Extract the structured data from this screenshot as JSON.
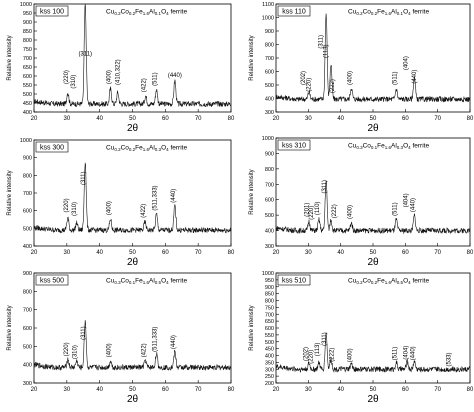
{
  "chart_data": [
    {
      "type": "line",
      "legend_label": "kss 100",
      "caption_parts": [
        [
          "Cu",
          "n"
        ],
        [
          "0.2",
          "s"
        ],
        [
          "Co",
          "n"
        ],
        [
          "0.2",
          "s"
        ],
        [
          "Fe",
          "n"
        ],
        [
          "1.6",
          "s"
        ],
        [
          "Al",
          "n"
        ],
        [
          "0.1",
          "s"
        ],
        [
          "O",
          "n"
        ],
        [
          "4",
          "s"
        ],
        [
          " ferrite",
          "n"
        ]
      ],
      "xlabel": "2θ",
      "ylabel": "Relative intensity",
      "xlim": [
        20,
        80
      ],
      "ylim": [
        400,
        1000
      ],
      "xticks": [
        20,
        30,
        40,
        50,
        60,
        70,
        80
      ],
      "yticks": [
        400,
        450,
        500,
        550,
        600,
        650,
        700,
        750,
        800,
        850,
        900,
        950,
        1000
      ],
      "background": 445,
      "peaks": [
        [
          30.3,
          510
        ],
        [
          35.6,
          1000
        ],
        [
          43.3,
          530
        ],
        [
          45.5,
          510
        ],
        [
          54.0,
          490
        ],
        [
          57.3,
          525
        ],
        [
          62.9,
          575
        ]
      ],
      "peak_labels": [
        {
          "text": "(220)",
          "x": 30.3,
          "y": 555,
          "rotate": true
        },
        {
          "text": "(310)",
          "x": 32.5,
          "y": 530,
          "rotate": true
        },
        {
          "text": "(311)",
          "x": 35.6,
          "y": 715,
          "rotate": false
        },
        {
          "text": "(400)",
          "x": 43.3,
          "y": 555,
          "rotate": true
        },
        {
          "text": "(410,322)",
          "x": 46.0,
          "y": 550,
          "rotate": true
        },
        {
          "text": "(422)",
          "x": 54.0,
          "y": 510,
          "rotate": true
        },
        {
          "text": "(511)",
          "x": 57.3,
          "y": 545,
          "rotate": true
        },
        {
          "text": "(440)",
          "x": 62.9,
          "y": 595,
          "rotate": false
        }
      ]
    },
    {
      "type": "line",
      "legend_label": "kss 110",
      "caption_parts": [
        [
          "Cu",
          "n"
        ],
        [
          "0.2",
          "s"
        ],
        [
          "Co",
          "n"
        ],
        [
          "0.2",
          "s"
        ],
        [
          "Fe",
          "n"
        ],
        [
          "1.6",
          "s"
        ],
        [
          "Al",
          "n"
        ],
        [
          "0.1",
          "s"
        ],
        [
          "O",
          "n"
        ],
        [
          "4",
          "s"
        ],
        [
          " ferrite",
          "n"
        ]
      ],
      "xlabel": "2θ",
      "ylabel": "Relative intensity",
      "xlim": [
        20,
        80
      ],
      "ylim": [
        300,
        1100
      ],
      "xticks": [
        20,
        30,
        40,
        50,
        60,
        70,
        80
      ],
      "yticks": [
        300,
        400,
        500,
        600,
        700,
        800,
        900,
        1000,
        1100
      ],
      "background": 395,
      "peaks": [
        [
          30.2,
          450
        ],
        [
          35.5,
          1030
        ],
        [
          37.0,
          650
        ],
        [
          43.3,
          480
        ],
        [
          57.2,
          470
        ],
        [
          62.8,
          560
        ]
      ],
      "peak_labels": [
        {
          "text": "(202)",
          "x": 29.0,
          "y": 500,
          "rotate": true
        },
        {
          "text": "(220)",
          "x": 30.6,
          "y": 450,
          "rotate": true
        },
        {
          "text": "(311)",
          "x": 34.4,
          "y": 770,
          "rotate": true
        },
        {
          "text": "(113)",
          "x": 36.0,
          "y": 700,
          "rotate": true
        },
        {
          "text": "(222)",
          "x": 38.0,
          "y": 440,
          "rotate": true
        },
        {
          "text": "(400)",
          "x": 43.3,
          "y": 500,
          "rotate": true
        },
        {
          "text": "(511)",
          "x": 57.2,
          "y": 500,
          "rotate": true
        },
        {
          "text": "(404)",
          "x": 60.6,
          "y": 610,
          "rotate": true
        },
        {
          "text": "(440)",
          "x": 63.3,
          "y": 510,
          "rotate": true
        }
      ]
    },
    {
      "type": "line",
      "legend_label": "kss 300",
      "caption_parts": [
        [
          "Cu",
          "n"
        ],
        [
          "0.2",
          "s"
        ],
        [
          "Co",
          "n"
        ],
        [
          "0.2",
          "s"
        ],
        [
          "Fe",
          "n"
        ],
        [
          "1.6",
          "s"
        ],
        [
          "Al",
          "n"
        ],
        [
          "0.3",
          "s"
        ],
        [
          "O",
          "n"
        ],
        [
          "4",
          "s"
        ],
        [
          " ferrite",
          "n"
        ]
      ],
      "xlabel": "2θ",
      "ylabel": "Relative intensity",
      "xlim": [
        20,
        80
      ],
      "ylim": [
        400,
        1000
      ],
      "xticks": [
        20,
        30,
        40,
        50,
        60,
        70,
        80
      ],
      "yticks": [
        400,
        500,
        600,
        700,
        800,
        900,
        1000
      ],
      "background": 490,
      "peaks": [
        [
          30.3,
          560
        ],
        [
          33.0,
          530
        ],
        [
          35.6,
          880
        ],
        [
          43.3,
          550
        ],
        [
          53.8,
          535
        ],
        [
          57.3,
          580
        ],
        [
          62.9,
          630
        ]
      ],
      "peak_labels": [
        {
          "text": "(220)",
          "x": 30.3,
          "y": 590,
          "rotate": true
        },
        {
          "text": "(310)",
          "x": 32.8,
          "y": 570,
          "rotate": true
        },
        {
          "text": "(311)",
          "x": 35.6,
          "y": 745,
          "rotate": true
        },
        {
          "text": "(400)",
          "x": 43.3,
          "y": 575,
          "rotate": true
        },
        {
          "text": "(422)",
          "x": 53.8,
          "y": 560,
          "rotate": true
        },
        {
          "text": "(511,333)",
          "x": 57.3,
          "y": 600,
          "rotate": true
        },
        {
          "text": "(440)",
          "x": 62.9,
          "y": 645,
          "rotate": true
        }
      ]
    },
    {
      "type": "line",
      "legend_label": "kss 310",
      "caption_parts": [
        [
          "Cu",
          "n"
        ],
        [
          "0.3",
          "s"
        ],
        [
          "Co",
          "n"
        ],
        [
          "0.1",
          "s"
        ],
        [
          "Fe",
          "n"
        ],
        [
          "1.6",
          "s"
        ],
        [
          "Al",
          "n"
        ],
        [
          "0.3",
          "s"
        ],
        [
          "O",
          "n"
        ],
        [
          "4",
          "s"
        ],
        [
          " ferrite",
          "n"
        ]
      ],
      "xlabel": "2θ",
      "ylabel": "Relative intensity",
      "xlim": [
        20,
        80
      ],
      "ylim": [
        300,
        1000
      ],
      "xticks": [
        20,
        30,
        40,
        50,
        60,
        70,
        80
      ],
      "yticks": [
        300,
        400,
        500,
        600,
        700,
        800,
        900,
        1000
      ],
      "background": 400,
      "peaks": [
        [
          30.2,
          460
        ],
        [
          33.3,
          470
        ],
        [
          35.5,
          720
        ],
        [
          37.0,
          470
        ],
        [
          43.3,
          450
        ],
        [
          57.2,
          470
        ],
        [
          62.8,
          500
        ]
      ],
      "peak_labels": [
        {
          "text": "(201)",
          "x": 30.0,
          "y": 490,
          "rotate": true
        },
        {
          "text": "(220)",
          "x": 31.4,
          "y": 470,
          "rotate": true
        },
        {
          "text": "(110)",
          "x": 33.3,
          "y": 500,
          "rotate": true
        },
        {
          "text": "(311)",
          "x": 35.5,
          "y": 640,
          "rotate": true
        },
        {
          "text": "(222)",
          "x": 38.6,
          "y": 480,
          "rotate": true
        },
        {
          "text": "(400)",
          "x": 43.3,
          "y": 475,
          "rotate": true
        },
        {
          "text": "(511)",
          "x": 57.2,
          "y": 495,
          "rotate": true
        },
        {
          "text": "(404)",
          "x": 60.7,
          "y": 550,
          "rotate": true
        },
        {
          "text": "(440)",
          "x": 62.8,
          "y": 520,
          "rotate": true
        }
      ]
    },
    {
      "type": "line",
      "legend_label": "kss 500",
      "caption_parts": [
        [
          "Cu",
          "n"
        ],
        [
          "0.3",
          "s"
        ],
        [
          "Co",
          "n"
        ],
        [
          "0.1",
          "s"
        ],
        [
          "Fe",
          "n"
        ],
        [
          "1.6",
          "s"
        ],
        [
          "Al",
          "n"
        ],
        [
          "0.5",
          "s"
        ],
        [
          "O",
          "n"
        ],
        [
          "4",
          "s"
        ],
        [
          " ferrite",
          "n"
        ]
      ],
      "xlabel": "2θ",
      "ylabel": "Relative intensity",
      "xlim": [
        20,
        80
      ],
      "ylim": [
        300,
        900
      ],
      "xticks": [
        20,
        30,
        40,
        50,
        60,
        70,
        80
      ],
      "yticks": [
        300,
        400,
        500,
        600,
        700,
        800,
        900
      ],
      "background": 385,
      "peaks": [
        [
          30.3,
          430
        ],
        [
          33.0,
          420
        ],
        [
          35.6,
          640
        ],
        [
          43.3,
          420
        ],
        [
          53.9,
          425
        ],
        [
          57.3,
          460
        ],
        [
          62.9,
          470
        ]
      ],
      "peak_labels": [
        {
          "text": "(220)",
          "x": 30.3,
          "y": 445,
          "rotate": true
        },
        {
          "text": "(310)",
          "x": 33.0,
          "y": 430,
          "rotate": true
        },
        {
          "text": "(311)",
          "x": 35.6,
          "y": 535,
          "rotate": true
        },
        {
          "text": "(400)",
          "x": 43.3,
          "y": 440,
          "rotate": true
        },
        {
          "text": "(422)",
          "x": 53.9,
          "y": 440,
          "rotate": true
        },
        {
          "text": "(511,333)",
          "x": 57.3,
          "y": 470,
          "rotate": true
        },
        {
          "text": "(440)",
          "x": 62.9,
          "y": 485,
          "rotate": true
        }
      ]
    },
    {
      "type": "line",
      "legend_label": "kss 510",
      "caption_parts": [
        [
          "Cu",
          "n"
        ],
        [
          "0.2",
          "s"
        ],
        [
          "Co",
          "n"
        ],
        [
          "0.2",
          "s"
        ],
        [
          "Fe",
          "n"
        ],
        [
          "1.6",
          "s"
        ],
        [
          "Al",
          "n"
        ],
        [
          "0.5",
          "s"
        ],
        [
          "O",
          "n"
        ],
        [
          "4",
          "s"
        ],
        [
          " ferrite",
          "n"
        ]
      ],
      "xlabel": "2θ",
      "ylabel": "Relative intensity",
      "xlim": [
        20,
        80
      ],
      "ylim": [
        200,
        1000
      ],
      "xticks": [
        20,
        30,
        40,
        50,
        60,
        70,
        80
      ],
      "yticks": [
        200,
        250,
        300,
        350,
        400,
        450,
        500,
        550,
        600,
        650,
        700,
        750,
        800,
        850,
        900,
        950,
        1000
      ],
      "background": 300,
      "peaks": [
        [
          30.2,
          340
        ],
        [
          33.3,
          345
        ],
        [
          35.5,
          560
        ],
        [
          37.0,
          375
        ],
        [
          43.3,
          340
        ],
        [
          57.2,
          350
        ],
        [
          60.6,
          355
        ],
        [
          62.8,
          360
        ]
      ],
      "peak_labels": [
        {
          "text": "(202)",
          "x": 29.8,
          "y": 360,
          "rotate": true
        },
        {
          "text": "(220)",
          "x": 31.3,
          "y": 340,
          "rotate": true
        },
        {
          "text": "(113)",
          "x": 33.3,
          "y": 395,
          "rotate": true
        },
        {
          "text": "(311)",
          "x": 35.5,
          "y": 470,
          "rotate": true
        },
        {
          "text": "(222)",
          "x": 37.8,
          "y": 355,
          "rotate": true
        },
        {
          "text": "(400)",
          "x": 43.3,
          "y": 350,
          "rotate": true
        },
        {
          "text": "(511)",
          "x": 57.2,
          "y": 365,
          "rotate": true
        },
        {
          "text": "(404)",
          "x": 60.6,
          "y": 370,
          "rotate": true
        },
        {
          "text": "(440)",
          "x": 62.8,
          "y": 365,
          "rotate": true
        },
        {
          "text": "(533)",
          "x": 74.0,
          "y": 320,
          "rotate": true
        }
      ]
    }
  ]
}
